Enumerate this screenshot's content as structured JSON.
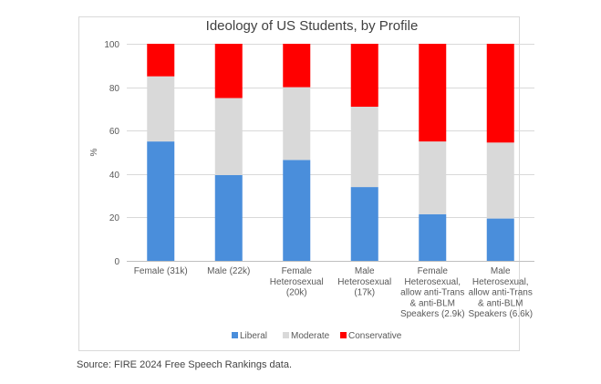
{
  "chart_data": {
    "type": "bar",
    "stacked": true,
    "title": "Ideology of US Students, by Profile",
    "ylabel": "%",
    "xlabel": "",
    "ylim": [
      0,
      100
    ],
    "yticks": [
      0,
      20,
      40,
      60,
      80,
      100
    ],
    "grid": true,
    "legend_position": "bottom",
    "categories": [
      [
        "Female (31k)"
      ],
      [
        "Male (22k)"
      ],
      [
        "Female",
        "Heterosexual",
        "(20k)"
      ],
      [
        "Male",
        "Heterosexual",
        "(17k)"
      ],
      [
        "Female",
        "Heterosexual,",
        "allow anti-Trans",
        "& anti-BLM",
        "Speakers (2.9k)"
      ],
      [
        "Male",
        "Heterosexual,",
        "allow anti-Trans",
        "& anti-BLM",
        "Speakers (6.6k)"
      ]
    ],
    "series": [
      {
        "name": "Liberal",
        "color": "#4a8edb",
        "values": [
          55,
          39.5,
          46.5,
          34,
          21.5,
          19.5
        ]
      },
      {
        "name": "Moderate",
        "color": "#d9d9d9",
        "values": [
          30,
          35.5,
          33.5,
          37,
          33.5,
          35
        ]
      },
      {
        "name": "Conservative",
        "color": "#ff0000",
        "values": [
          15,
          25,
          20,
          29,
          45,
          45.5
        ]
      }
    ]
  },
  "source_note": "Source: FIRE 2024 Free Speech Rankings data."
}
